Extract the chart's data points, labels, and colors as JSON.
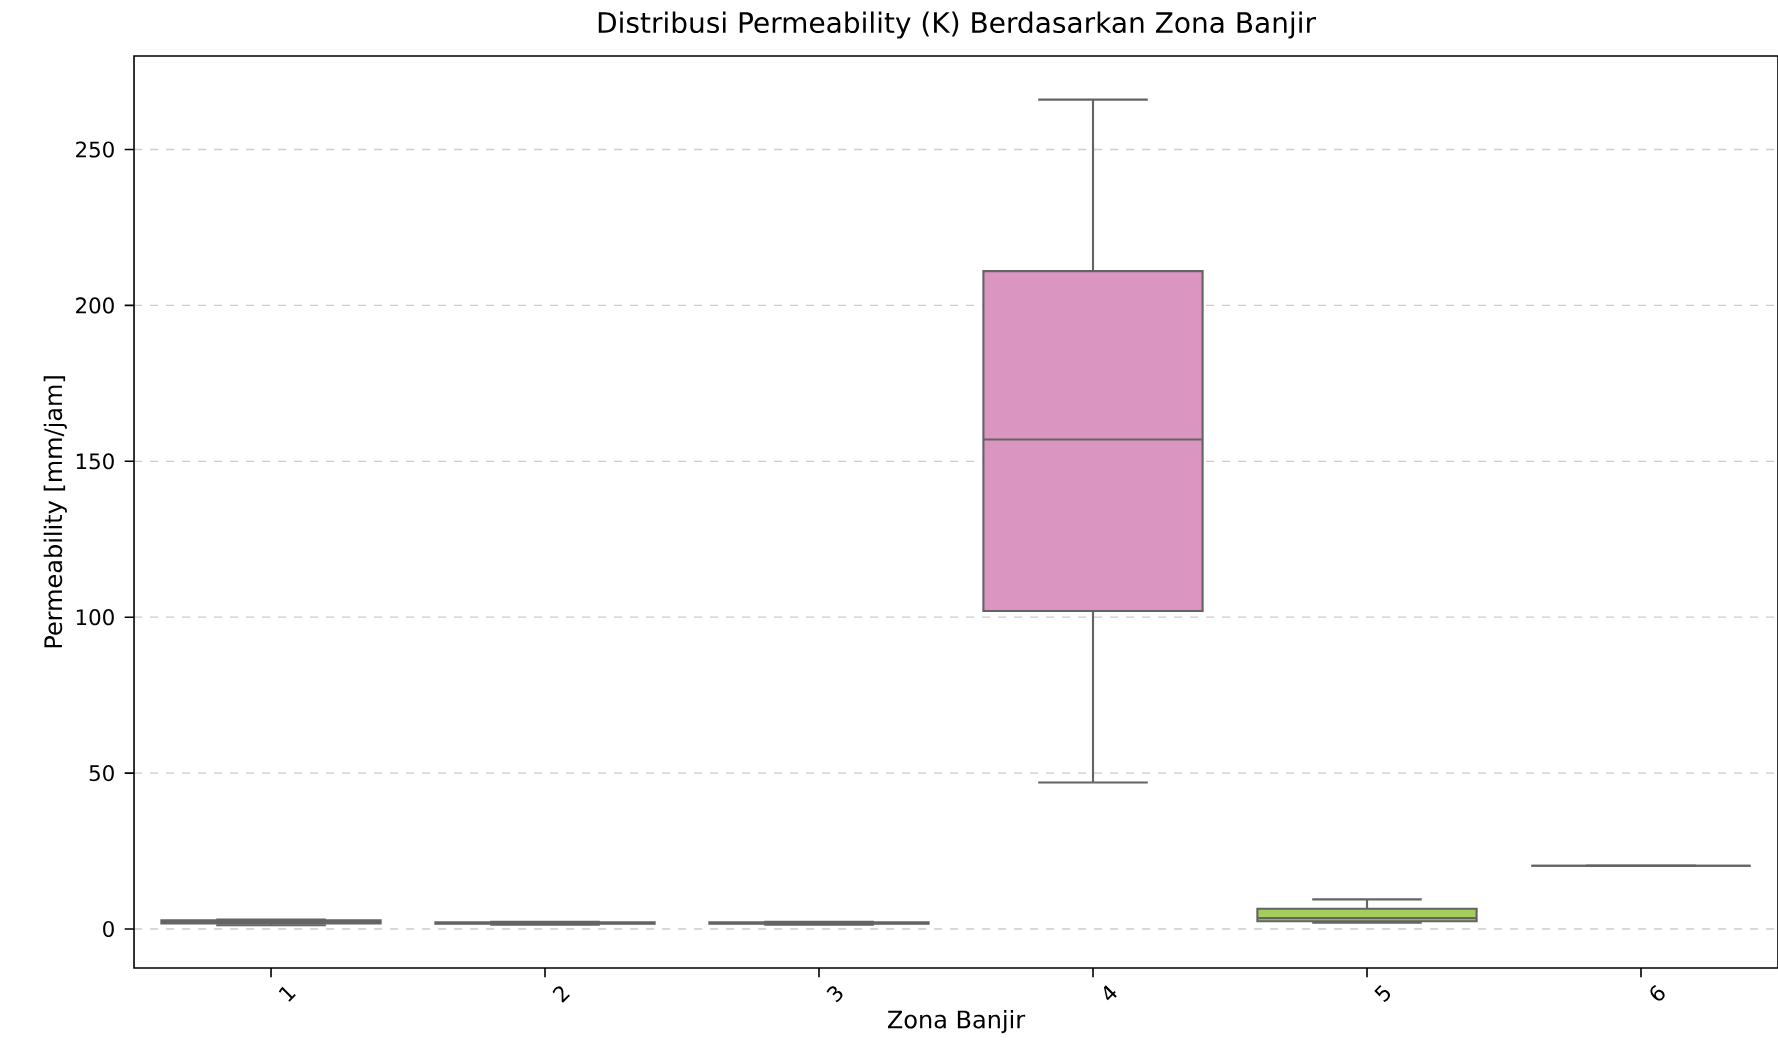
{
  "chart_data": {
    "type": "box",
    "title": "Distribusi Permeability (K) Berdasarkan Zona Banjir",
    "xlabel": "Zona Banjir",
    "ylabel": "Permeability [mm/jam]",
    "categories": [
      "1",
      "2",
      "3",
      "4",
      "5",
      "6"
    ],
    "boxes": [
      {
        "low": 1.2,
        "q1": 1.8,
        "median": 2.2,
        "q3": 2.8,
        "high": 3.0
      },
      {
        "low": 1.4,
        "q1": 1.7,
        "median": 1.9,
        "q3": 2.1,
        "high": 2.3
      },
      {
        "low": 1.4,
        "q1": 1.7,
        "median": 1.9,
        "q3": 2.1,
        "high": 2.3
      },
      {
        "low": 47,
        "q1": 102,
        "median": 157,
        "q3": 211,
        "high": 266
      },
      {
        "low": 2,
        "q1": 2.5,
        "median": 3.5,
        "q3": 6.5,
        "high": 9.5
      },
      {
        "low": 20.3,
        "q1": 20.3,
        "median": 20.3,
        "q3": 20.3,
        "high": 20.3
      }
    ],
    "colors": [
      "#72bca4",
      "#ef9270",
      "#94a2c6",
      "#db95c1",
      "#a3ce5b",
      null
    ],
    "ylim": [
      -12.5,
      280
    ],
    "yticks": [
      0,
      50,
      100,
      150,
      200,
      250
    ],
    "grid": "y"
  }
}
